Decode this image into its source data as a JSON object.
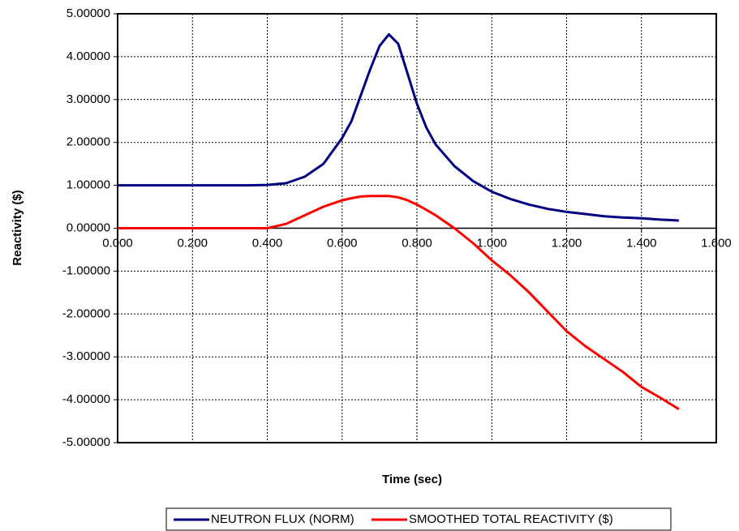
{
  "chart_data": {
    "type": "line",
    "x_label": "Time (sec)",
    "y_label": "Reactivity ($)",
    "x": [
      0,
      0.05,
      0.1,
      0.15,
      0.2,
      0.25,
      0.3,
      0.35,
      0.4,
      0.45,
      0.5,
      0.55,
      0.6,
      0.625,
      0.65,
      0.675,
      0.7,
      0.725,
      0.75,
      0.775,
      0.8,
      0.825,
      0.85,
      0.9,
      0.95,
      1.0,
      1.05,
      1.1,
      1.15,
      1.2,
      1.25,
      1.3,
      1.35,
      1.4,
      1.45,
      1.5
    ],
    "series": [
      {
        "name": "NEUTRON FLUX (NORM)",
        "color": "#000080",
        "values": [
          1,
          1,
          1,
          1,
          1,
          1,
          1,
          1,
          1.01,
          1.05,
          1.2,
          1.5,
          2.1,
          2.5,
          3.1,
          3.7,
          4.25,
          4.52,
          4.3,
          3.6,
          2.9,
          2.35,
          1.95,
          1.45,
          1.1,
          0.85,
          0.68,
          0.55,
          0.45,
          0.38,
          0.33,
          0.28,
          0.25,
          0.23,
          0.2,
          0.18
        ]
      },
      {
        "name": "SMOOTHED TOTAL REACTIVITY ($)",
        "color": "#ff0000",
        "values": [
          0,
          0,
          0,
          0,
          0,
          0,
          0,
          0,
          0,
          0.1,
          0.3,
          0.5,
          0.65,
          0.7,
          0.74,
          0.75,
          0.75,
          0.75,
          0.72,
          0.65,
          0.55,
          0.43,
          0.3,
          0,
          -0.35,
          -0.75,
          -1.1,
          -1.5,
          -1.95,
          -2.4,
          -2.75,
          -3.05,
          -3.35,
          -3.7,
          -3.95,
          -4.22
        ]
      }
    ],
    "xlim": [
      0,
      1.6
    ],
    "ylim": [
      -5,
      5
    ],
    "xticks": [
      {
        "value": 0,
        "label": "0.000"
      },
      {
        "value": 0.2,
        "label": "0.200"
      },
      {
        "value": 0.4,
        "label": "0.400"
      },
      {
        "value": 0.6,
        "label": "0.600"
      },
      {
        "value": 0.8,
        "label": "0.800"
      },
      {
        "value": 1.0,
        "label": "1.000"
      },
      {
        "value": 1.2,
        "label": "1.200"
      },
      {
        "value": 1.4,
        "label": "1.400"
      },
      {
        "value": 1.6,
        "label": "1.600"
      }
    ],
    "yticks": [
      {
        "value": -5,
        "label": "-5.00000"
      },
      {
        "value": -4,
        "label": "-4.00000"
      },
      {
        "value": -3,
        "label": "-3.00000"
      },
      {
        "value": -2,
        "label": "-2.00000"
      },
      {
        "value": -1,
        "label": "-1.00000"
      },
      {
        "value": 0,
        "label": "0.00000"
      },
      {
        "value": 1,
        "label": "1.00000"
      },
      {
        "value": 2,
        "label": "2.00000"
      },
      {
        "value": 3,
        "label": "3.00000"
      },
      {
        "value": 4,
        "label": "4.00000"
      },
      {
        "value": 5,
        "label": "5.00000"
      }
    ],
    "grid": true,
    "legend": "bottom"
  }
}
